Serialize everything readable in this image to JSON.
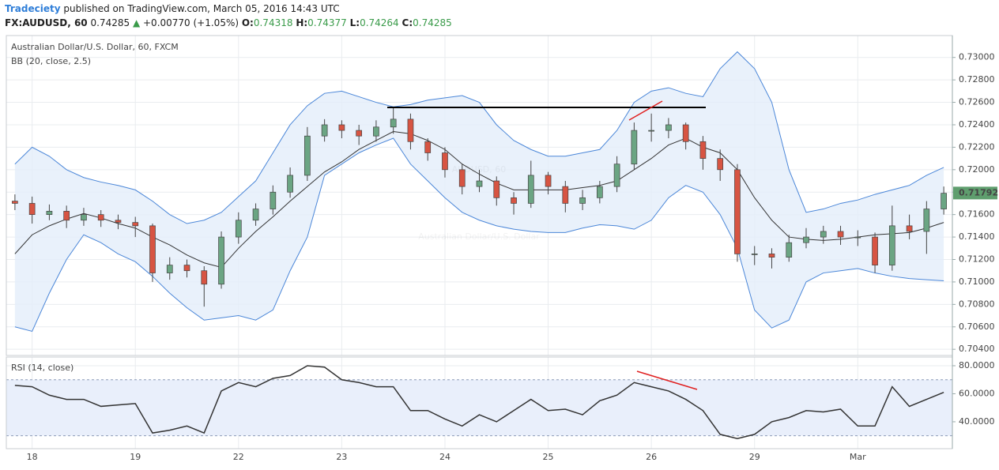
{
  "header": {
    "author": "Tradeciety",
    "published": "published on TradingView.com, March 05, 2016 14:43 UTC",
    "symbol": "FX:AUDUSD, 60",
    "price": "0.74285",
    "arrow": "▲",
    "change": "+0.00770 (+1.05%)",
    "o_label": "O:",
    "o": "0.74318",
    "h_label": "H:",
    "h": "0.74377",
    "l_label": "L:",
    "l": "0.74264",
    "c_label": "C:",
    "c": "0.74285"
  },
  "chart_data": [
    {
      "type": "candlestick",
      "title": "Australian Dollar/U.S. Dollar, 60, FXCM",
      "indicator": "BB (20, close, 2.5)",
      "watermark": "AUDUSD, 60",
      "watermark_subtitle": "Australian Dollar/U.S. Dollar",
      "open": [
        0.7172,
        0.717,
        0.716,
        0.7163,
        0.7155,
        0.716,
        0.7155,
        0.7153,
        0.715,
        0.7108,
        0.7115,
        0.711,
        0.7098,
        0.714,
        0.7155,
        0.7165,
        0.718,
        0.7195,
        0.723,
        0.724,
        0.7235,
        0.723,
        0.7238,
        0.7245,
        0.7225,
        0.7215,
        0.72,
        0.7185,
        0.719,
        0.7175,
        0.717,
        0.7195,
        0.7185,
        0.717,
        0.7175,
        0.7185,
        0.7205,
        0.7235,
        0.7235,
        0.724,
        0.7225,
        0.721,
        0.72,
        0.7125,
        0.7125,
        0.7122,
        0.7135,
        0.714,
        0.7145,
        0.714,
        0.714,
        0.7115,
        0.715,
        0.7145,
        0.7165
      ],
      "high": [
        0.7178,
        0.7176,
        0.7169,
        0.7168,
        0.7166,
        0.7164,
        0.716,
        0.7158,
        0.7152,
        0.7122,
        0.712,
        0.7114,
        0.7145,
        0.7162,
        0.717,
        0.7186,
        0.7202,
        0.7238,
        0.7245,
        0.7244,
        0.724,
        0.7244,
        0.7256,
        0.725,
        0.7228,
        0.722,
        0.7205,
        0.72,
        0.7194,
        0.718,
        0.7208,
        0.7198,
        0.719,
        0.7182,
        0.719,
        0.7212,
        0.7242,
        0.725,
        0.7246,
        0.7242,
        0.723,
        0.7218,
        0.7205,
        0.7132,
        0.713,
        0.7142,
        0.7148,
        0.715,
        0.715,
        0.7146,
        0.7144,
        0.7168,
        0.716,
        0.7172,
        0.7185
      ],
      "low": [
        0.7164,
        0.7152,
        0.7155,
        0.7148,
        0.715,
        0.7149,
        0.7147,
        0.714,
        0.71,
        0.7102,
        0.7104,
        0.7078,
        0.7094,
        0.7134,
        0.715,
        0.716,
        0.7175,
        0.719,
        0.7225,
        0.7228,
        0.7222,
        0.7225,
        0.7232,
        0.7218,
        0.7208,
        0.7193,
        0.7178,
        0.718,
        0.7168,
        0.716,
        0.7166,
        0.7178,
        0.7162,
        0.7164,
        0.717,
        0.718,
        0.72,
        0.7225,
        0.7228,
        0.7218,
        0.72,
        0.719,
        0.7118,
        0.7115,
        0.7112,
        0.7118,
        0.713,
        0.7134,
        0.7133,
        0.7132,
        0.7108,
        0.711,
        0.7138,
        0.7125,
        0.716
      ],
      "close": [
        0.717,
        0.716,
        0.7163,
        0.7155,
        0.716,
        0.7155,
        0.7153,
        0.715,
        0.7108,
        0.7115,
        0.711,
        0.7098,
        0.714,
        0.7155,
        0.7165,
        0.718,
        0.7195,
        0.723,
        0.724,
        0.7235,
        0.723,
        0.7238,
        0.7245,
        0.7225,
        0.7215,
        0.72,
        0.7185,
        0.719,
        0.7175,
        0.717,
        0.7195,
        0.7185,
        0.717,
        0.7175,
        0.7185,
        0.7205,
        0.7235,
        0.7235,
        0.724,
        0.7225,
        0.721,
        0.72,
        0.7125,
        0.7125,
        0.7122,
        0.7135,
        0.714,
        0.7145,
        0.714,
        0.714,
        0.7115,
        0.715,
        0.7145,
        0.7165,
        0.7179
      ],
      "up_color": "#6ba583",
      "down_color": "#d75442",
      "band_fill": "#e3eefa",
      "bands": [
        {
          "color": "#4a86d8",
          "values": [
            0.7205,
            0.722,
            0.7212,
            0.72,
            0.7193,
            0.7189,
            0.7186,
            0.7182,
            0.7172,
            0.716,
            0.7152,
            0.7155,
            0.7162,
            0.7176,
            0.719,
            0.7215,
            0.724,
            0.7257,
            0.7268,
            0.727,
            0.7265,
            0.726,
            0.7256,
            0.7258,
            0.7262,
            0.7264,
            0.7266,
            0.726,
            0.724,
            0.7226,
            0.7218,
            0.7212,
            0.7212,
            0.7215,
            0.7218,
            0.7235,
            0.726,
            0.727,
            0.7273,
            0.7268,
            0.7265,
            0.729,
            0.7305,
            0.729,
            0.726,
            0.72,
            0.7162,
            0.7165,
            0.717,
            0.7173,
            0.7178,
            0.7182,
            0.7186,
            0.7195,
            0.7202
          ]
        },
        {
          "color": "#333333",
          "values": [
            0.7125,
            0.7142,
            0.715,
            0.7156,
            0.7161,
            0.7157,
            0.7152,
            0.7148,
            0.714,
            0.7133,
            0.7124,
            0.7117,
            0.7113,
            0.713,
            0.7145,
            0.7158,
            0.7172,
            0.7185,
            0.7198,
            0.7207,
            0.7218,
            0.7226,
            0.7234,
            0.7232,
            0.7226,
            0.7218,
            0.7205,
            0.7196,
            0.7188,
            0.7182,
            0.7182,
            0.7182,
            0.7182,
            0.7184,
            0.7186,
            0.719,
            0.72,
            0.721,
            0.7222,
            0.7228,
            0.722,
            0.7215,
            0.72,
            0.7175,
            0.7155,
            0.714,
            0.7138,
            0.7137,
            0.7138,
            0.714,
            0.7142,
            0.7143,
            0.7144,
            0.7148,
            0.7153
          ]
        },
        {
          "color": "#4a86d8",
          "values": [
            0.706,
            0.7056,
            0.709,
            0.712,
            0.7142,
            0.7135,
            0.7125,
            0.7118,
            0.7105,
            0.709,
            0.7077,
            0.7066,
            0.7068,
            0.707,
            0.7066,
            0.7075,
            0.711,
            0.714,
            0.7195,
            0.7205,
            0.7215,
            0.7222,
            0.7228,
            0.7205,
            0.719,
            0.7175,
            0.7162,
            0.7155,
            0.715,
            0.7147,
            0.7145,
            0.7144,
            0.7144,
            0.7148,
            0.7151,
            0.715,
            0.7147,
            0.7155,
            0.7175,
            0.7186,
            0.718,
            0.716,
            0.713,
            0.7075,
            0.7059,
            0.7066,
            0.71,
            0.7108,
            0.711,
            0.7112,
            0.7108,
            0.7105,
            0.7103,
            0.7102,
            0.7101
          ]
        }
      ],
      "ylim": [
        0.70345,
        0.73195
      ],
      "yticks": [
        {
          "value": 0.704,
          "label": "0.70400"
        },
        {
          "value": 0.706,
          "label": "0.70600"
        },
        {
          "value": 0.708,
          "label": "0.70800"
        },
        {
          "value": 0.71,
          "label": "0.71000"
        },
        {
          "value": 0.712,
          "label": "0.71200"
        },
        {
          "value": 0.714,
          "label": "0.71400"
        },
        {
          "value": 0.716,
          "label": "0.71600"
        },
        {
          "value": 0.718,
          "label": "0.71800"
        },
        {
          "value": 0.72,
          "label": "0.72000"
        },
        {
          "value": 0.722,
          "label": "0.72200"
        },
        {
          "value": 0.724,
          "label": "0.72400"
        },
        {
          "value": 0.726,
          "label": "0.72600"
        },
        {
          "value": 0.728,
          "label": "0.72800"
        },
        {
          "value": 0.73,
          "label": "0.73000"
        }
      ],
      "last_price": 0.71792,
      "last_price_color": "#5f9e6e",
      "grid": true
    },
    {
      "type": "line",
      "title": "RSI (14, close)",
      "categories": [
        null,
        "18",
        null,
        null,
        null,
        null,
        null,
        "19",
        null,
        null,
        null,
        null,
        null,
        "22",
        null,
        null,
        null,
        null,
        null,
        "23",
        null,
        null,
        null,
        null,
        null,
        "24",
        null,
        null,
        null,
        null,
        null,
        "25",
        null,
        null,
        null,
        null,
        null,
        "26",
        null,
        null,
        null,
        null,
        null,
        "29",
        null,
        null,
        null,
        null,
        null,
        "Mar",
        null,
        null,
        null,
        null,
        null
      ],
      "values": [
        66,
        65,
        59,
        56,
        56,
        51,
        52,
        53,
        32,
        34,
        37,
        32,
        62,
        68,
        65,
        71,
        73,
        80,
        79,
        70,
        68,
        65,
        65,
        48,
        48,
        42,
        37,
        45,
        40,
        48,
        56,
        48,
        49,
        45,
        55,
        59,
        68,
        65,
        62,
        56,
        48,
        31,
        28,
        31,
        40,
        43,
        48,
        47,
        49,
        37,
        37,
        65,
        51,
        56,
        61
      ],
      "color": "#333333",
      "ylim": [
        20.8,
        86.2
      ],
      "yticks": [
        {
          "value": 40,
          "label": "40.0000"
        },
        {
          "value": 60,
          "label": "60.0000"
        },
        {
          "value": 80,
          "label": "80.0000"
        }
      ],
      "bands": [
        30,
        70
      ],
      "band_fill": "#e9effb",
      "grid": true
    }
  ]
}
